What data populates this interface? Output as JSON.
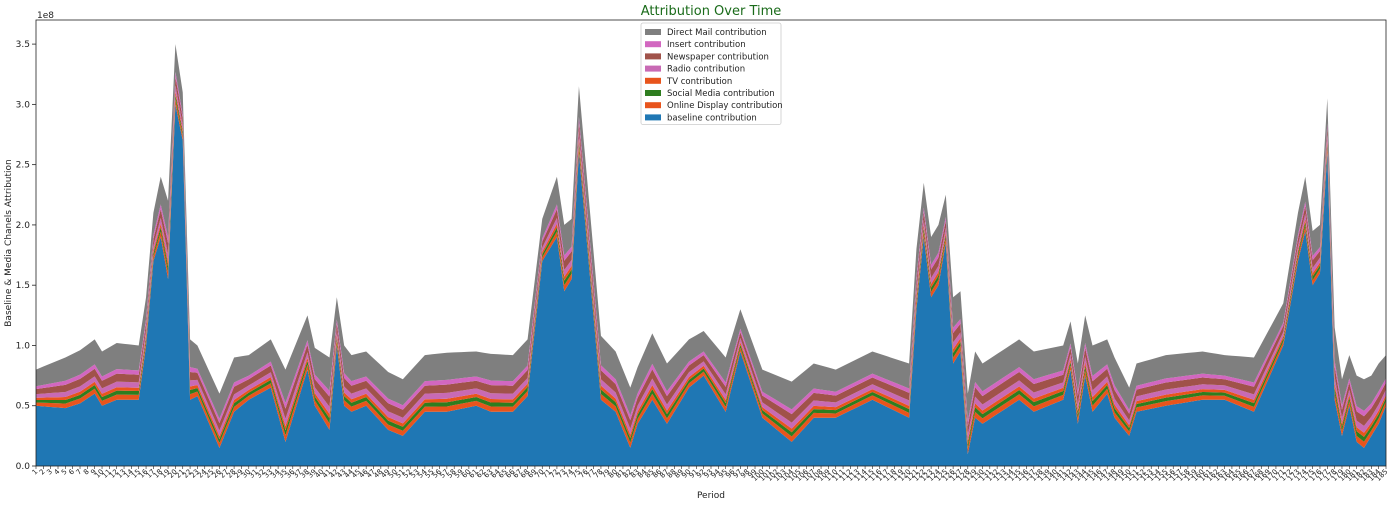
{
  "chart_data": {
    "type": "area",
    "stacked": true,
    "title": "Attribution Over Time",
    "xlabel": "Period",
    "ylabel": "Baseline & Media Chanels Attribution",
    "y_offset_label": "1e8",
    "ylim": [
      0,
      3.7
    ],
    "yticks": [
      "0.0",
      "0.5",
      "1.0",
      "1.5",
      "2.0",
      "2.5",
      "3.0",
      "3.5"
    ],
    "x_range": [
      1,
      185
    ],
    "legend_position": "top-center",
    "grid": false,
    "control_points": {
      "x": [
        1,
        5,
        7,
        9,
        10,
        12,
        15,
        16,
        17,
        18,
        19,
        20,
        21,
        22,
        23,
        26,
        28,
        30,
        33,
        35,
        38,
        39,
        41,
        42,
        43,
        44,
        46,
        49,
        51,
        54,
        57,
        61,
        63,
        66,
        68,
        70,
        72,
        73,
        74,
        75,
        78,
        80,
        82,
        83,
        85,
        87,
        90,
        92,
        95,
        97,
        100,
        104,
        107,
        110,
        115,
        120,
        121,
        122,
        123,
        124,
        125,
        126,
        127,
        128,
        129,
        130,
        135,
        137,
        141,
        142,
        143,
        144,
        145,
        147,
        148,
        150,
        151,
        155,
        160,
        163,
        167,
        171,
        173,
        174,
        175,
        176,
        177,
        178,
        179,
        180,
        181,
        182,
        183,
        184,
        185
      ],
      "total": [
        0.8,
        0.9,
        0.96,
        1.05,
        0.95,
        1.02,
        1.0,
        1.4,
        2.1,
        2.4,
        2.2,
        3.5,
        3.1,
        1.05,
        1.0,
        0.6,
        0.9,
        0.92,
        1.05,
        0.8,
        1.25,
        0.98,
        0.9,
        1.4,
        1.0,
        0.92,
        0.95,
        0.78,
        0.72,
        0.92,
        0.94,
        0.95,
        0.93,
        0.92,
        1.05,
        2.05,
        2.4,
        2.0,
        2.05,
        3.15,
        1.08,
        0.95,
        0.65,
        0.82,
        1.1,
        0.85,
        1.05,
        1.12,
        0.9,
        1.3,
        0.8,
        0.7,
        0.85,
        0.8,
        0.95,
        0.85,
        1.8,
        2.35,
        1.9,
        2.0,
        2.25,
        1.4,
        1.45,
        0.6,
        0.95,
        0.85,
        1.05,
        0.95,
        1.0,
        1.2,
        0.85,
        1.25,
        1.0,
        1.05,
        0.9,
        0.65,
        0.85,
        0.92,
        0.95,
        0.92,
        0.9,
        1.35,
        2.1,
        2.4,
        1.95,
        2.0,
        3.05,
        1.15,
        0.72,
        0.92,
        0.75,
        0.72,
        0.75,
        0.85,
        0.92
      ],
      "baseline": [
        0.5,
        0.48,
        0.52,
        0.6,
        0.5,
        0.55,
        0.55,
        1.0,
        1.7,
        1.9,
        1.55,
        3.0,
        2.7,
        0.55,
        0.58,
        0.15,
        0.45,
        0.55,
        0.65,
        0.2,
        0.8,
        0.5,
        0.3,
        1.0,
        0.5,
        0.45,
        0.5,
        0.3,
        0.25,
        0.45,
        0.45,
        0.5,
        0.45,
        0.45,
        0.58,
        1.7,
        1.9,
        1.45,
        1.55,
        2.6,
        0.55,
        0.45,
        0.15,
        0.35,
        0.55,
        0.35,
        0.65,
        0.75,
        0.45,
        0.95,
        0.4,
        0.2,
        0.4,
        0.4,
        0.55,
        0.4,
        1.3,
        1.9,
        1.4,
        1.5,
        1.85,
        0.85,
        0.95,
        0.1,
        0.4,
        0.35,
        0.55,
        0.45,
        0.55,
        0.8,
        0.35,
        0.75,
        0.45,
        0.6,
        0.4,
        0.25,
        0.45,
        0.5,
        0.55,
        0.55,
        0.45,
        1.0,
        1.7,
        1.95,
        1.5,
        1.6,
        2.6,
        0.55,
        0.25,
        0.5,
        0.2,
        0.15,
        0.25,
        0.35,
        0.5
      ]
    },
    "series": [
      {
        "name": "baseline contribution",
        "color": "#1f77b4",
        "share": 1.0
      },
      {
        "name": "Online Display contribution",
        "color": "#e8541c",
        "share": 0.09
      },
      {
        "name": "Social Media contribution",
        "color": "#2e7d1f",
        "share": 0.07
      },
      {
        "name": "TV contribution",
        "color": "#e8541c",
        "share": 0.06
      },
      {
        "name": "Radio contribution",
        "color": "#c86ab4",
        "share": 0.1
      },
      {
        "name": "Newspaper contribution",
        "color": "#a0524a",
        "share": 0.14
      },
      {
        "name": "Insert contribution",
        "color": "#d267c0",
        "share": 0.08
      },
      {
        "name": "Direct Mail contribution",
        "color": "#7f7f7f",
        "share": 0.46
      }
    ]
  }
}
